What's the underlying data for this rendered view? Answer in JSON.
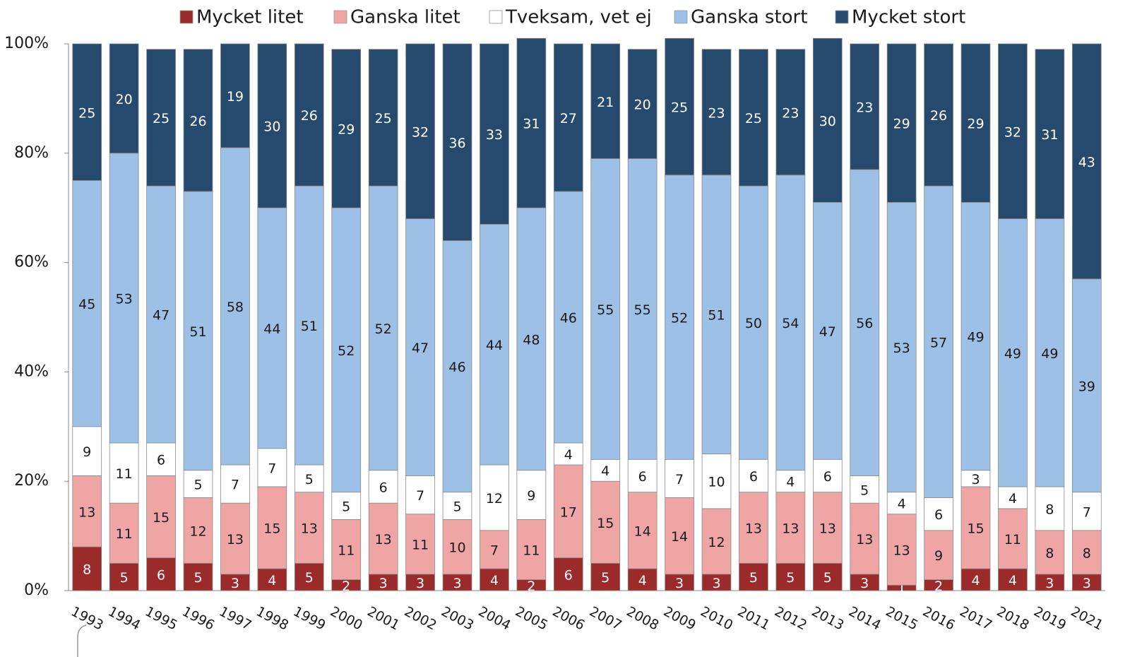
{
  "chart_data": {
    "type": "stacked_bar",
    "categories": [
      "1993",
      "1994",
      "1995",
      "1996",
      "1997",
      "1998",
      "1999",
      "2000",
      "2001",
      "2002",
      "2003",
      "2004",
      "2005",
      "2006",
      "2007",
      "2008",
      "2009",
      "2010",
      "2011",
      "2012",
      "2013",
      "2014",
      "2015",
      "2016",
      "2017",
      "2018",
      "2019",
      "2021"
    ],
    "series": [
      {
        "name": "Mycket litet",
        "color": "#9b2b2b",
        "values": [
          8,
          5,
          6,
          5,
          3,
          4,
          5,
          2,
          3,
          3,
          3,
          4,
          2,
          6,
          5,
          4,
          3,
          3,
          5,
          5,
          5,
          3,
          1,
          2,
          4,
          4,
          3,
          3
        ]
      },
      {
        "name": "Ganska litet",
        "color": "#f0a5a5",
        "values": [
          13,
          11,
          15,
          12,
          13,
          15,
          13,
          11,
          13,
          11,
          10,
          7,
          11,
          17,
          15,
          14,
          14,
          12,
          13,
          13,
          13,
          13,
          13,
          9,
          15,
          11,
          8,
          8
        ]
      },
      {
        "name": "Tveksam, vet ej",
        "color": "#ffffff",
        "values": [
          9,
          11,
          6,
          5,
          7,
          7,
          5,
          5,
          6,
          7,
          5,
          12,
          9,
          4,
          4,
          6,
          7,
          10,
          6,
          4,
          6,
          5,
          4,
          6,
          3,
          4,
          8,
          7
        ]
      },
      {
        "name": "Ganska stort",
        "color": "#9dc0e6",
        "values": [
          45,
          53,
          47,
          51,
          58,
          44,
          51,
          52,
          52,
          47,
          46,
          44,
          48,
          46,
          55,
          55,
          52,
          51,
          50,
          54,
          47,
          56,
          53,
          57,
          49,
          49,
          49,
          39
        ]
      },
      {
        "name": "Mycket stort",
        "color": "#264a6e",
        "values": [
          25,
          20,
          25,
          26,
          19,
          30,
          26,
          29,
          25,
          32,
          36,
          33,
          31,
          27,
          21,
          20,
          25,
          23,
          25,
          23,
          30,
          23,
          29,
          26,
          29,
          32,
          31,
          43
        ]
      }
    ],
    "ylim": [
      0,
      100
    ],
    "yticks": [
      {
        "value": 0,
        "label": "0%"
      },
      {
        "value": 20,
        "label": "20%"
      },
      {
        "value": 40,
        "label": "40%"
      },
      {
        "value": 60,
        "label": "60%"
      },
      {
        "value": 80,
        "label": "80%"
      },
      {
        "value": 100,
        "label": "100%"
      }
    ],
    "legend": "top"
  }
}
